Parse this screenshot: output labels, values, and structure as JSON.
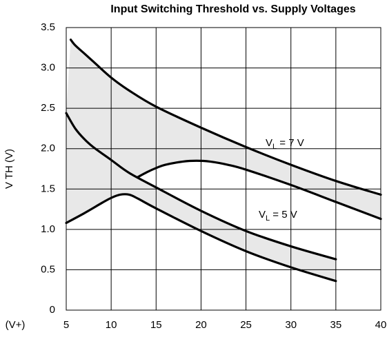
{
  "chart_data": {
    "type": "line",
    "title": "Input Switching Threshold vs. Supply Voltages",
    "x_label": "(V+)",
    "y_label": "V TH (V)",
    "xlim": [
      5,
      40
    ],
    "xticks": [
      5,
      10,
      15,
      20,
      25,
      30,
      35,
      40
    ],
    "ylim": [
      0,
      3.5
    ],
    "yticks": [
      0,
      0.5,
      {
        "value": 1,
        "label": "1.0"
      },
      1.5,
      {
        "value": 2,
        "label": "2.0"
      },
      2.5,
      {
        "value": 3,
        "label": "3.0"
      },
      3.5
    ],
    "grid": true,
    "series": [
      {
        "color": "#000000",
        "x": [
          5.5,
          6,
          7,
          8,
          10,
          12,
          15,
          20,
          25,
          30,
          35,
          40
        ],
        "values": [
          3.35,
          3.28,
          3.18,
          3.08,
          2.88,
          2.72,
          2.52,
          2.26,
          2.02,
          1.8,
          1.6,
          1.43
        ]
      },
      {
        "color": "#000000",
        "x": [
          13,
          14,
          15,
          16,
          18,
          19.5,
          21,
          23,
          25,
          30,
          35,
          40
        ],
        "values": [
          1.65,
          1.71,
          1.76,
          1.8,
          1.84,
          1.85,
          1.84,
          1.8,
          1.74,
          1.55,
          1.34,
          1.13
        ]
      },
      {
        "color": "#000000",
        "x": [
          5,
          6,
          7,
          8,
          10,
          12,
          15,
          20,
          25,
          30,
          35
        ],
        "values": [
          2.44,
          2.25,
          2.12,
          2.02,
          1.86,
          1.7,
          1.52,
          1.23,
          0.98,
          0.79,
          0.63
        ]
      },
      {
        "color": "#000000",
        "x": [
          5,
          7,
          9,
          10,
          11,
          12,
          13,
          15,
          20,
          25,
          30,
          35
        ],
        "values": [
          1.08,
          1.2,
          1.33,
          1.39,
          1.43,
          1.43,
          1.38,
          1.26,
          0.98,
          0.73,
          0.53,
          0.36
        ]
      }
    ],
    "annotations": [
      {
        "parts": [
          "V",
          "L",
          " = 7 V"
        ]
      },
      {
        "parts": [
          "V",
          "L",
          " = 5 V"
        ]
      }
    ]
  }
}
